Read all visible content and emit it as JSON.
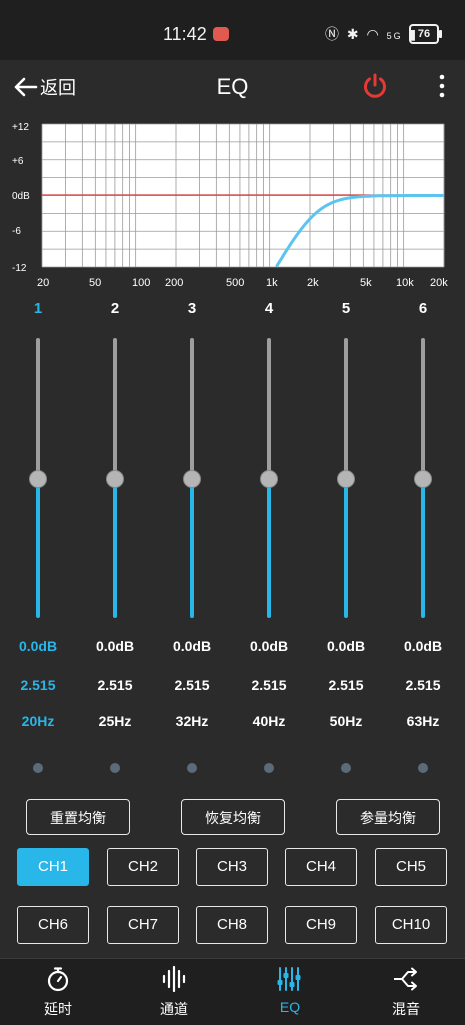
{
  "status": {
    "time": "11:42",
    "signal": "5G",
    "battery": "76"
  },
  "toolbar": {
    "back_label": "返回",
    "title": "EQ"
  },
  "graph": {
    "y_labels": [
      "+12",
      "+6",
      "0dB",
      "-6",
      "-12"
    ],
    "x_labels": [
      "20",
      "50",
      "100",
      "200",
      "500",
      "1k",
      "2k",
      "5k",
      "10k",
      "20k"
    ]
  },
  "bands": [
    {
      "num": "1",
      "gain": "0.0dB",
      "q": "2.515",
      "freq": "20Hz",
      "level": 0.5,
      "active": true
    },
    {
      "num": "2",
      "gain": "0.0dB",
      "q": "2.515",
      "freq": "25Hz",
      "level": 0.5,
      "active": false
    },
    {
      "num": "3",
      "gain": "0.0dB",
      "q": "2.515",
      "freq": "32Hz",
      "level": 0.5,
      "active": false
    },
    {
      "num": "4",
      "gain": "0.0dB",
      "q": "2.515",
      "freq": "40Hz",
      "level": 0.5,
      "active": false
    },
    {
      "num": "5",
      "gain": "0.0dB",
      "q": "2.515",
      "freq": "50Hz",
      "level": 0.5,
      "active": false
    },
    {
      "num": "6",
      "gain": "0.0dB",
      "q": "2.515",
      "freq": "63Hz",
      "level": 0.5,
      "active": false
    }
  ],
  "actions": {
    "reset": "重置均衡",
    "restore": "恢复均衡",
    "param": "参量均衡"
  },
  "channels": [
    "CH1",
    "CH2",
    "CH3",
    "CH4",
    "CH5",
    "CH6",
    "CH7",
    "CH8",
    "CH9",
    "CH10"
  ],
  "active_channel": "CH1",
  "nav": [
    {
      "label": "延时",
      "icon": "stopwatch-icon"
    },
    {
      "label": "通道",
      "icon": "waveform-icon"
    },
    {
      "label": "EQ",
      "icon": "equalizer-icon",
      "active": true
    },
    {
      "label": "混音",
      "icon": "mix-icon"
    }
  ],
  "colors": {
    "accent": "#29b6e8",
    "power": "#e53935",
    "zero_line": "#d33a3a",
    "curve": "#5bc4ef"
  }
}
